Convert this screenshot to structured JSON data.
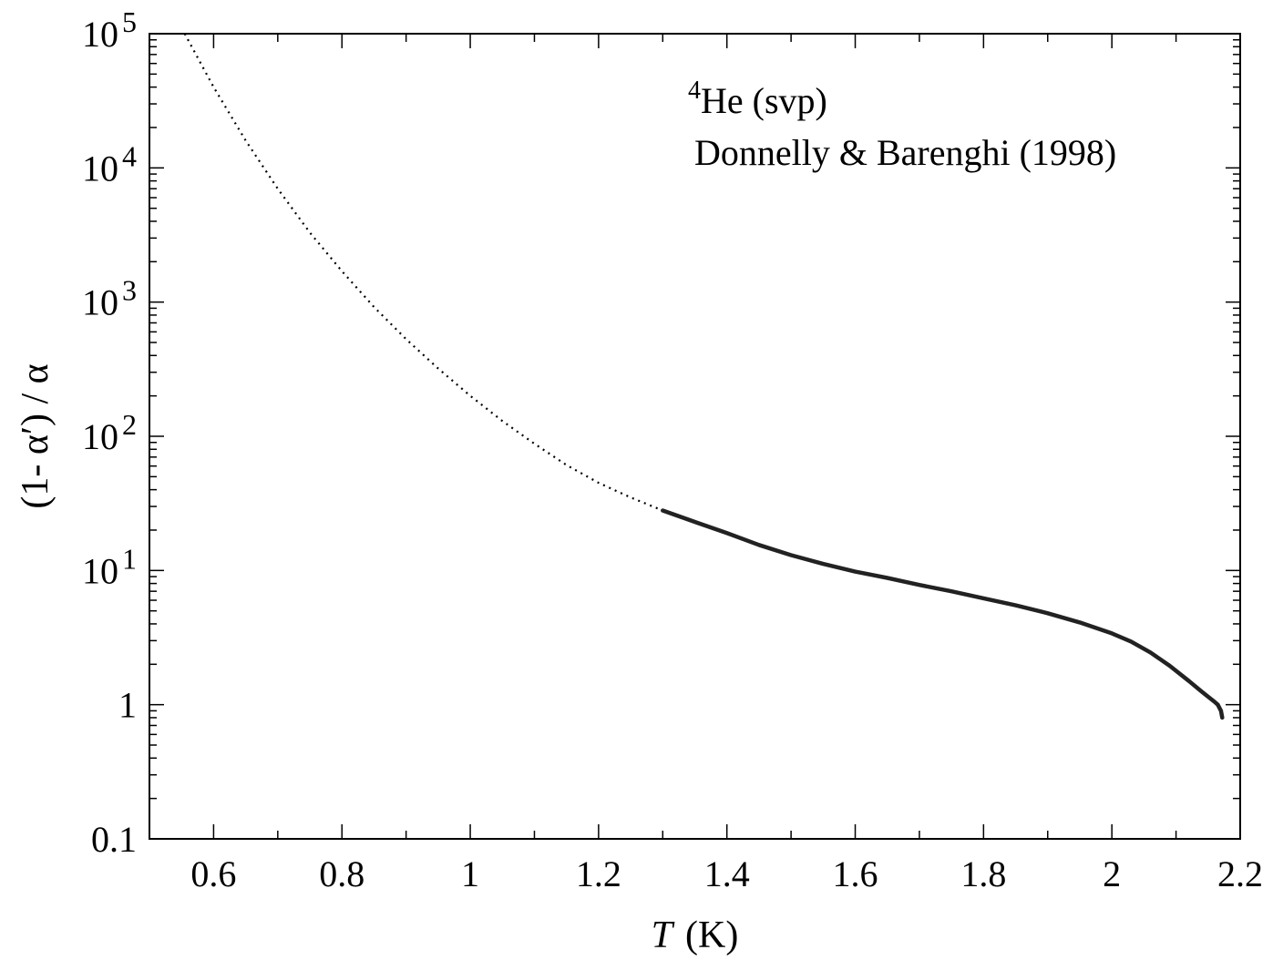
{
  "chart_data": {
    "type": "line",
    "title": "",
    "xlabel": {
      "italic": "T",
      "rest": "(K)"
    },
    "ylabel": "(1- α′) / α",
    "xlim": [
      0.5,
      2.2
    ],
    "ylim": [
      0.1,
      100000
    ],
    "yscale": "log",
    "grid": false,
    "x_ticks": [
      {
        "value": 0.6,
        "label": "0.6"
      },
      {
        "value": 0.8,
        "label": "0.8"
      },
      {
        "value": 1.0,
        "label": "1"
      },
      {
        "value": 1.2,
        "label": "1.2"
      },
      {
        "value": 1.4,
        "label": "1.4"
      },
      {
        "value": 1.6,
        "label": "1.6"
      },
      {
        "value": 1.8,
        "label": "1.8"
      },
      {
        "value": 2.0,
        "label": "2"
      },
      {
        "value": 2.2,
        "label": "2.2"
      }
    ],
    "y_ticks": [
      {
        "value": 0.1,
        "base": "0.1",
        "exp": ""
      },
      {
        "value": 1,
        "base": "1",
        "exp": ""
      },
      {
        "value": 10,
        "base": "10",
        "exp": "1"
      },
      {
        "value": 100,
        "base": "10",
        "exp": "2"
      },
      {
        "value": 1000,
        "base": "10",
        "exp": "3"
      },
      {
        "value": 10000,
        "base": "10",
        "exp": "4"
      },
      {
        "value": 100000,
        "base": "10",
        "exp": "5"
      }
    ],
    "annotations": {
      "line1": {
        "sup": "4",
        "text": "He  (svp)"
      },
      "line2": "Donnelly & Barenghi  (1998)"
    },
    "series": [
      {
        "style": "dotted",
        "color": "#000000",
        "x": [
          0.555,
          0.6,
          0.65,
          0.7,
          0.75,
          0.8,
          0.85,
          0.9,
          0.95,
          1.0,
          1.05,
          1.1,
          1.15,
          1.2,
          1.25,
          1.3
        ],
        "y": [
          100000,
          40000,
          16000,
          7000,
          3300,
          1700,
          920,
          530,
          320,
          200,
          130,
          88,
          61,
          45,
          35,
          28
        ]
      },
      {
        "style": "solid",
        "color": "#222222",
        "x": [
          1.3,
          1.35,
          1.4,
          1.45,
          1.5,
          1.55,
          1.6,
          1.65,
          1.7,
          1.75,
          1.8,
          1.85,
          1.9,
          1.95,
          2.0,
          2.03,
          2.06,
          2.09,
          2.12,
          2.14,
          2.16,
          2.165,
          2.17,
          2.172
        ],
        "y": [
          28,
          23,
          19,
          15.5,
          13,
          11.2,
          9.8,
          8.8,
          7.8,
          7.0,
          6.2,
          5.5,
          4.8,
          4.1,
          3.4,
          2.95,
          2.45,
          1.95,
          1.5,
          1.25,
          1.05,
          1.0,
          0.9,
          0.8
        ]
      }
    ]
  }
}
